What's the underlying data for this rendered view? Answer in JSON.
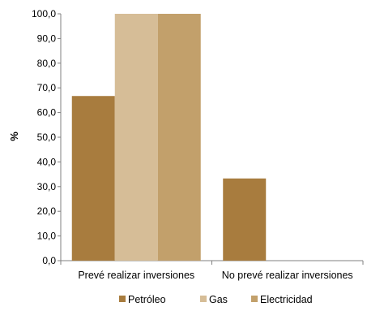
{
  "chart_data": {
    "type": "bar",
    "title": "",
    "xlabel": "",
    "ylabel": "%",
    "ylim": [
      0,
      100
    ],
    "yticks": [
      "0,0",
      "10,0",
      "20,0",
      "30,0",
      "40,0",
      "50,0",
      "60,0",
      "70,0",
      "80,0",
      "90,0",
      "100,0"
    ],
    "categories": [
      "Prevé realizar inversiones",
      "No prevé realizar inversiones"
    ],
    "series": [
      {
        "name": "Petróleo",
        "color": "#A87C3E",
        "values": [
          66.7,
          33.3
        ]
      },
      {
        "name": "Gas",
        "color": "#D6BD97",
        "values": [
          100.0,
          0.0
        ]
      },
      {
        "name": "Electricidad",
        "color": "#C2A06B",
        "values": [
          100.0,
          0.0
        ]
      }
    ],
    "grid": false,
    "legend_position": "bottom"
  }
}
